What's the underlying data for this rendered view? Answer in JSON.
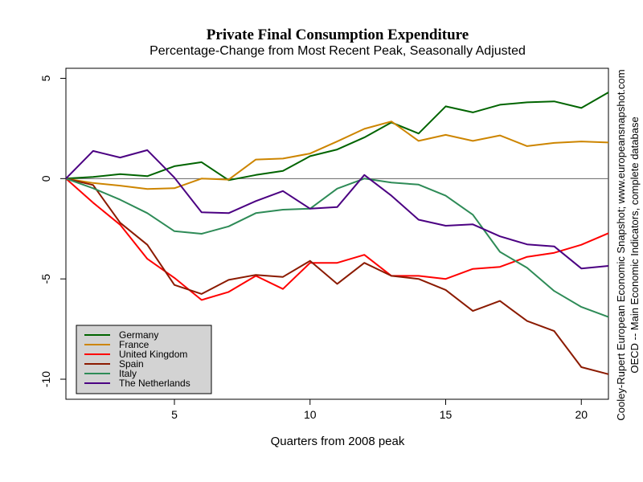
{
  "chart_data": {
    "type": "line",
    "title": "Private Final Consumption Expenditure",
    "subtitle": "Percentage-Change from Most Recent Peak, Seasonally Adjusted",
    "xlabel": "Quarters from 2008 peak",
    "ylabel": "",
    "xlim": [
      1,
      21
    ],
    "ylim": [
      -11,
      5.5
    ],
    "xticks": [
      5,
      10,
      15,
      20
    ],
    "yticks": [
      5,
      0,
      -5,
      -10
    ],
    "reference_line_y": 0,
    "legend_position": "bottom-left",
    "x": [
      1,
      2,
      3,
      4,
      5,
      6,
      7,
      8,
      9,
      10,
      11,
      12,
      13,
      14,
      15,
      16,
      17,
      18,
      19,
      20,
      21
    ],
    "series": [
      {
        "name": "Germany",
        "color": "#006400",
        "values": [
          0,
          0.08,
          0.22,
          0.12,
          0.62,
          0.82,
          -0.08,
          0.18,
          0.38,
          1.12,
          1.45,
          2.05,
          2.8,
          2.25,
          3.6,
          3.3,
          3.68,
          3.8,
          3.85,
          3.52,
          4.3
        ]
      },
      {
        "name": "France",
        "color": "#CD8500",
        "values": [
          0,
          -0.22,
          -0.35,
          -0.52,
          -0.48,
          0,
          -0.05,
          0.95,
          1.0,
          1.25,
          1.85,
          2.48,
          2.85,
          1.88,
          2.18,
          1.88,
          2.15,
          1.62,
          1.78,
          1.85,
          1.8
        ]
      },
      {
        "name": "United Kingdom",
        "color": "#FF0000",
        "values": [
          0,
          -1.2,
          -2.3,
          -4.0,
          -4.95,
          -6.05,
          -5.65,
          -4.85,
          -5.5,
          -4.2,
          -4.2,
          -3.8,
          -4.85,
          -4.85,
          -5.0,
          -4.5,
          -4.4,
          -3.9,
          -3.7,
          -3.3,
          -2.72
        ]
      },
      {
        "name": "Spain",
        "color": "#8B1A00",
        "values": [
          0,
          -0.32,
          -2.2,
          -3.3,
          -5.3,
          -5.75,
          -5.05,
          -4.8,
          -4.9,
          -4.1,
          -5.25,
          -4.2,
          -4.85,
          -5.0,
          -5.55,
          -6.6,
          -6.1,
          -7.1,
          -7.6,
          -9.4,
          -9.75
        ]
      },
      {
        "name": "Italy",
        "color": "#2E8B57",
        "values": [
          0,
          -0.48,
          -1.05,
          -1.72,
          -2.62,
          -2.75,
          -2.38,
          -1.72,
          -1.55,
          -1.5,
          -0.5,
          0,
          -0.2,
          -0.3,
          -0.85,
          -1.8,
          -3.65,
          -4.45,
          -5.6,
          -6.4,
          -6.9
        ]
      },
      {
        "name": "The Netherlands",
        "color": "#4B0082",
        "values": [
          0,
          1.38,
          1.05,
          1.42,
          0.05,
          -1.68,
          -1.72,
          -1.12,
          -0.62,
          -1.5,
          -1.42,
          0.18,
          -0.85,
          -2.05,
          -2.35,
          -2.28,
          -2.88,
          -3.28,
          -3.38,
          -4.48,
          -4.35
        ]
      }
    ],
    "side_notes": [
      "Cooley-Rupert European Economic Snapshot; www.europeansnapshot.com",
      "OECD -- Main Economic Indicators, complete database"
    ]
  }
}
